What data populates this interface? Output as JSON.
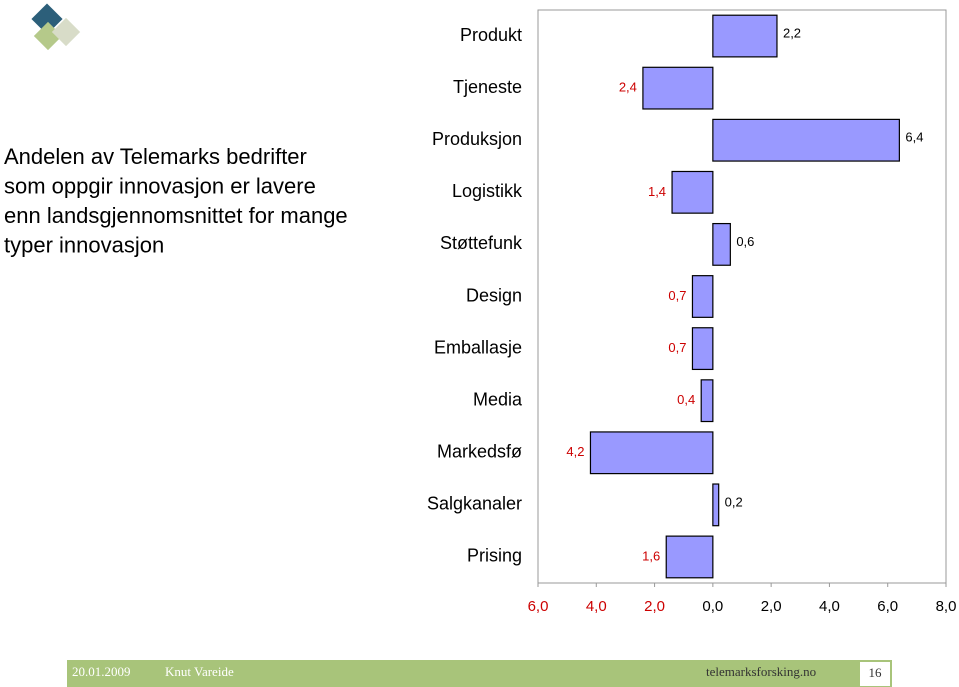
{
  "slide": {
    "heading_lines": [
      "Andelen av Telemarks bedrifter",
      "som oppgir innovasjon er lavere",
      "enn landsgjennomsnittet for mange",
      "typer innovasjon"
    ],
    "footer": {
      "date": "20.01.2009",
      "author": "Knut Vareide",
      "site": "telemarksforsking.no",
      "page": "16"
    }
  },
  "chart_data": {
    "type": "hbar",
    "categories": [
      "Produkt",
      "Tjeneste",
      "Produksjon",
      "Logistikk",
      "Støttefunk",
      "Design",
      "Emballasje",
      "Media",
      "Markedsfø",
      "Salgkanaler",
      "Prising"
    ],
    "values": [
      2.2,
      -2.4,
      6.4,
      -1.4,
      0.6,
      -0.7,
      -0.7,
      -0.4,
      -4.2,
      0.2,
      -1.6
    ],
    "value_labels": [
      "2,2",
      "2,4",
      "6,4",
      "1,4",
      "0,6",
      "0,7",
      "0,7",
      "0,4",
      "4,2",
      "0,2",
      "1,6"
    ],
    "color": "#9999ff",
    "negative_label_color": "#cc0000",
    "positive_label_color": "#000000",
    "xlim": [
      -6,
      8
    ],
    "xticks": [
      {
        "value": -6,
        "label": "6,0"
      },
      {
        "value": -4,
        "label": "4,0"
      },
      {
        "value": -2,
        "label": "2,0"
      },
      {
        "value": 0,
        "label": "0,0"
      },
      {
        "value": 2,
        "label": "2,0"
      },
      {
        "value": 4,
        "label": "4,0"
      },
      {
        "value": 6,
        "label": "6,0"
      },
      {
        "value": 8,
        "label": "8,0"
      }
    ]
  }
}
